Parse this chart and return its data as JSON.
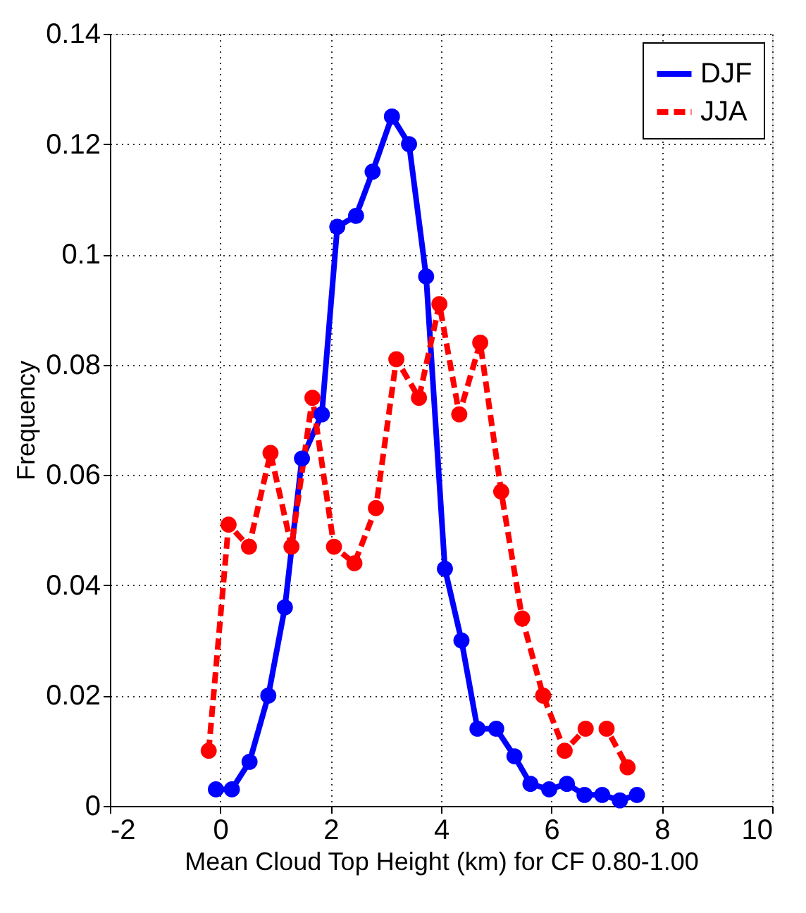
{
  "chart_data": {
    "type": "line",
    "xlabel": "Mean Cloud Top Height (km) for CF 0.80-1.00",
    "ylabel": "Frequency",
    "xlim": [
      -2,
      10
    ],
    "xticks": [
      -2,
      0,
      2,
      4,
      6,
      8,
      10
    ],
    "ylim": [
      0,
      0.14
    ],
    "yticks": [
      0,
      0.02,
      0.04,
      0.06,
      0.08,
      0.1,
      0.12,
      0.14
    ],
    "grid": true,
    "legend": "top right",
    "marker": "circle",
    "series": [
      {
        "name": "DJF",
        "color": "#0000ff",
        "line_style": "solid",
        "x": [
          -0.08,
          0.21,
          0.53,
          0.87,
          1.17,
          1.48,
          1.84,
          2.12,
          2.46,
          2.76,
          3.11,
          3.42,
          3.73,
          4.07,
          4.37,
          4.66,
          5.0,
          5.33,
          5.62,
          5.96,
          6.28,
          6.6,
          6.92,
          7.24,
          7.55
        ],
        "values": [
          0.003,
          0.003,
          0.008,
          0.02,
          0.036,
          0.063,
          0.071,
          0.105,
          0.107,
          0.115,
          0.125,
          0.12,
          0.096,
          0.043,
          0.03,
          0.014,
          0.014,
          0.009,
          0.004,
          0.003,
          0.004,
          0.002,
          0.002,
          0.001,
          0.002
        ]
      },
      {
        "name": "JJA",
        "color": "#ff0000",
        "line_style": "dashed",
        "x": [
          -0.21,
          0.15,
          0.52,
          0.91,
          1.29,
          1.67,
          2.06,
          2.43,
          2.82,
          3.19,
          3.6,
          3.97,
          4.33,
          4.71,
          5.09,
          5.47,
          5.85,
          6.24,
          6.62,
          7.0,
          7.38
        ],
        "values": [
          0.01,
          0.051,
          0.047,
          0.064,
          0.047,
          0.074,
          0.047,
          0.044,
          0.054,
          0.081,
          0.074,
          0.091,
          0.071,
          0.084,
          0.057,
          0.034,
          0.02,
          0.01,
          0.014,
          0.014,
          0.007
        ]
      }
    ]
  }
}
